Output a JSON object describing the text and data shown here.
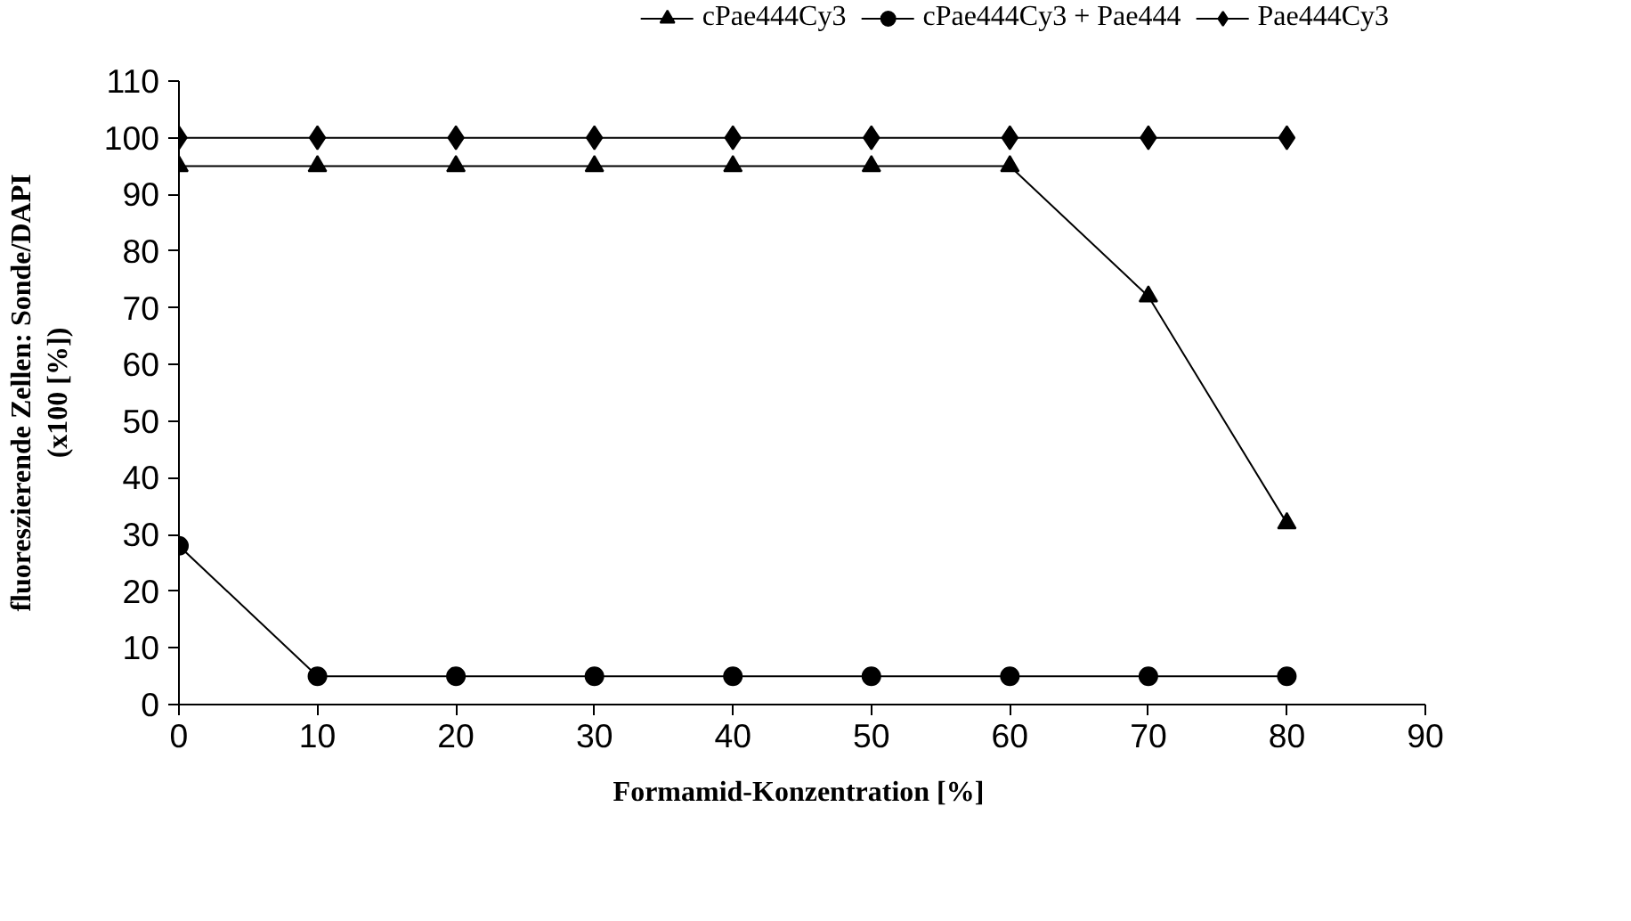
{
  "chart_data": {
    "type": "line",
    "xlabel": "Formamid-Konzentration  [%]",
    "ylabel": "fluoreszierende Zellen: Sonde/DAPI\n(x100 [%])",
    "x": [
      0,
      10,
      20,
      30,
      40,
      50,
      60,
      70,
      80
    ],
    "series": [
      {
        "name": "cPae444Cy3",
        "color": "#000000",
        "marker": "triangle",
        "values": [
          95,
          95,
          95,
          95,
          95,
          95,
          95,
          72,
          32
        ]
      },
      {
        "name": "cPae444Cy3 + Pae444",
        "color": "#000000",
        "marker": "circle",
        "values": [
          28,
          5,
          5,
          5,
          5,
          5,
          5,
          5,
          5
        ]
      },
      {
        "name": "Pae444Cy3",
        "color": "#000000",
        "marker": "diamond",
        "values": [
          100,
          100,
          100,
          100,
          100,
          100,
          100,
          100,
          100
        ]
      }
    ],
    "xlim": [
      0,
      90
    ],
    "xticks": [
      0,
      10,
      20,
      30,
      40,
      50,
      60,
      70,
      80,
      90
    ],
    "ylim": [
      0,
      110
    ],
    "yticks": [
      0,
      10,
      20,
      30,
      40,
      50,
      60,
      70,
      80,
      90,
      100,
      110
    ],
    "grid": false,
    "legend": "top right",
    "line_style": "solid"
  }
}
